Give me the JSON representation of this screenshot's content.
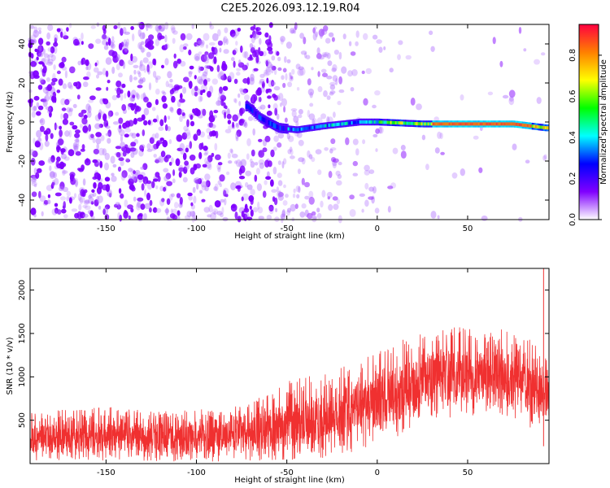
{
  "figure_title": "C2E5.2026.093.12.19.R04",
  "chart_data": [
    {
      "type": "heatmap",
      "title": "",
      "xlabel": "Height of straight line (km)",
      "ylabel": "Frequency (Hz)",
      "xlim": [
        -192,
        95
      ],
      "ylim": [
        -50,
        50
      ],
      "xticks": [
        -150,
        -100,
        -50,
        0,
        50
      ],
      "yticks": [
        -40,
        -20,
        0,
        20,
        40
      ],
      "colorbar": {
        "label": "Normalized spectral amplitude",
        "ticks": [
          "0.0",
          "0.2",
          "0.4",
          "0.6",
          "0.8"
        ],
        "range": [
          0,
          0.95
        ],
        "colors": [
          "#ffffff",
          "#8000ff",
          "#0000ff",
          "#00ffff",
          "#00ff00",
          "#ffff00",
          "#ff8000",
          "#ff0040"
        ]
      },
      "ridge": [
        {
          "x": -72,
          "y": 8
        },
        {
          "x": -65,
          "y": 2
        },
        {
          "x": -55,
          "y": -3
        },
        {
          "x": -45,
          "y": -4
        },
        {
          "x": -30,
          "y": -2
        },
        {
          "x": -10,
          "y": 0
        },
        {
          "x": 0,
          "y": 0
        },
        {
          "x": 25,
          "y": -1
        },
        {
          "x": 50,
          "y": -1
        },
        {
          "x": 75,
          "y": -1
        },
        {
          "x": 93,
          "y": -3
        }
      ]
    },
    {
      "type": "line",
      "title": "",
      "xlabel": "Height of straight line (km)",
      "ylabel": "SNR (10 * v/v)",
      "xlim": [
        -192,
        95
      ],
      "ylim": [
        0,
        2250
      ],
      "xticks": [
        -150,
        -100,
        -50,
        0,
        50
      ],
      "yticks": [
        500,
        1000,
        1500,
        2000
      ],
      "color": "#f03030",
      "envelope": [
        {
          "x": -190,
          "lo": 20,
          "hi": 600
        },
        {
          "x": -150,
          "lo": 30,
          "hi": 650
        },
        {
          "x": -100,
          "lo": 20,
          "hi": 620
        },
        {
          "x": -70,
          "lo": 30,
          "hi": 700
        },
        {
          "x": -50,
          "lo": 40,
          "hi": 950
        },
        {
          "x": -30,
          "lo": 50,
          "hi": 1050
        },
        {
          "x": -10,
          "lo": 150,
          "hi": 1200
        },
        {
          "x": 10,
          "lo": 300,
          "hi": 1400
        },
        {
          "x": 30,
          "lo": 500,
          "hi": 1550
        },
        {
          "x": 50,
          "lo": 550,
          "hi": 1600
        },
        {
          "x": 70,
          "lo": 500,
          "hi": 1550
        },
        {
          "x": 90,
          "lo": 350,
          "hi": 1400
        }
      ],
      "spike": {
        "x": 92,
        "y": 2250
      }
    }
  ]
}
